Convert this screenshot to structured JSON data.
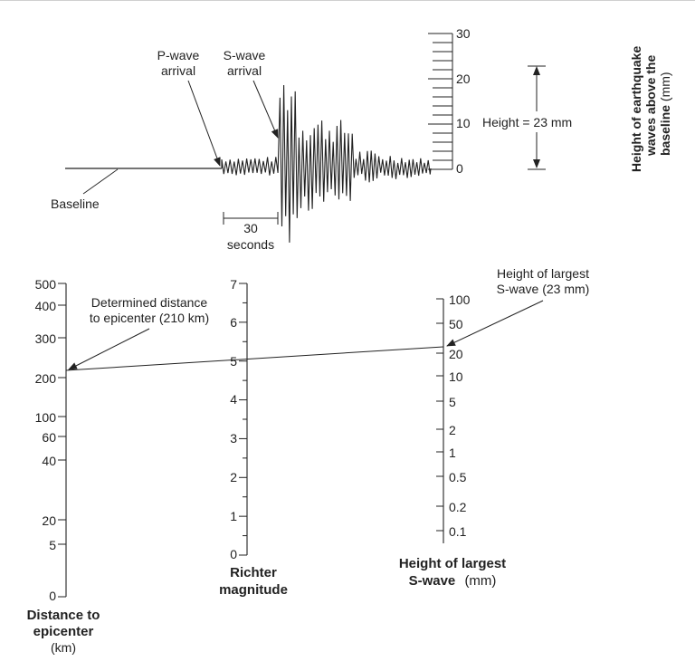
{
  "seismogram": {
    "p_wave_label": [
      "P-wave",
      "arrival"
    ],
    "s_wave_label": [
      "S-wave",
      "arrival"
    ],
    "baseline_label": "Baseline",
    "time_scale_label": [
      "30",
      "seconds"
    ],
    "scale_ticks": [
      "30",
      "20",
      "10",
      "0"
    ],
    "height_label": "Height = 23 mm",
    "axis_title": [
      "Height of earthquake",
      "waves above the",
      "baseline (mm)"
    ]
  },
  "nomogram": {
    "distance_axis": {
      "ticks": [
        "500",
        "400",
        "300",
        "200",
        "100",
        "60",
        "40",
        "20",
        "5",
        "0"
      ],
      "title": [
        "Distance to",
        "epicenter",
        "(km)"
      ]
    },
    "magnitude_axis": {
      "ticks": [
        "7",
        "6",
        "5",
        "4",
        "3",
        "2",
        "1",
        "0"
      ],
      "title": [
        "Richter",
        "magnitude"
      ]
    },
    "swave_axis": {
      "ticks": [
        "100",
        "50",
        "20",
        "10",
        "5",
        "2",
        "1",
        "0.5",
        "0.2",
        "0.1"
      ],
      "title": [
        "Height of largest",
        "S-wave",
        "(mm)"
      ]
    },
    "callout_distance": [
      "Determined distance",
      "to epicenter (210 km)"
    ],
    "callout_swave": [
      "Height of largest",
      "S-wave (23 mm)"
    ]
  },
  "colors": {
    "ink": "#222222",
    "background": "#ffffff"
  }
}
